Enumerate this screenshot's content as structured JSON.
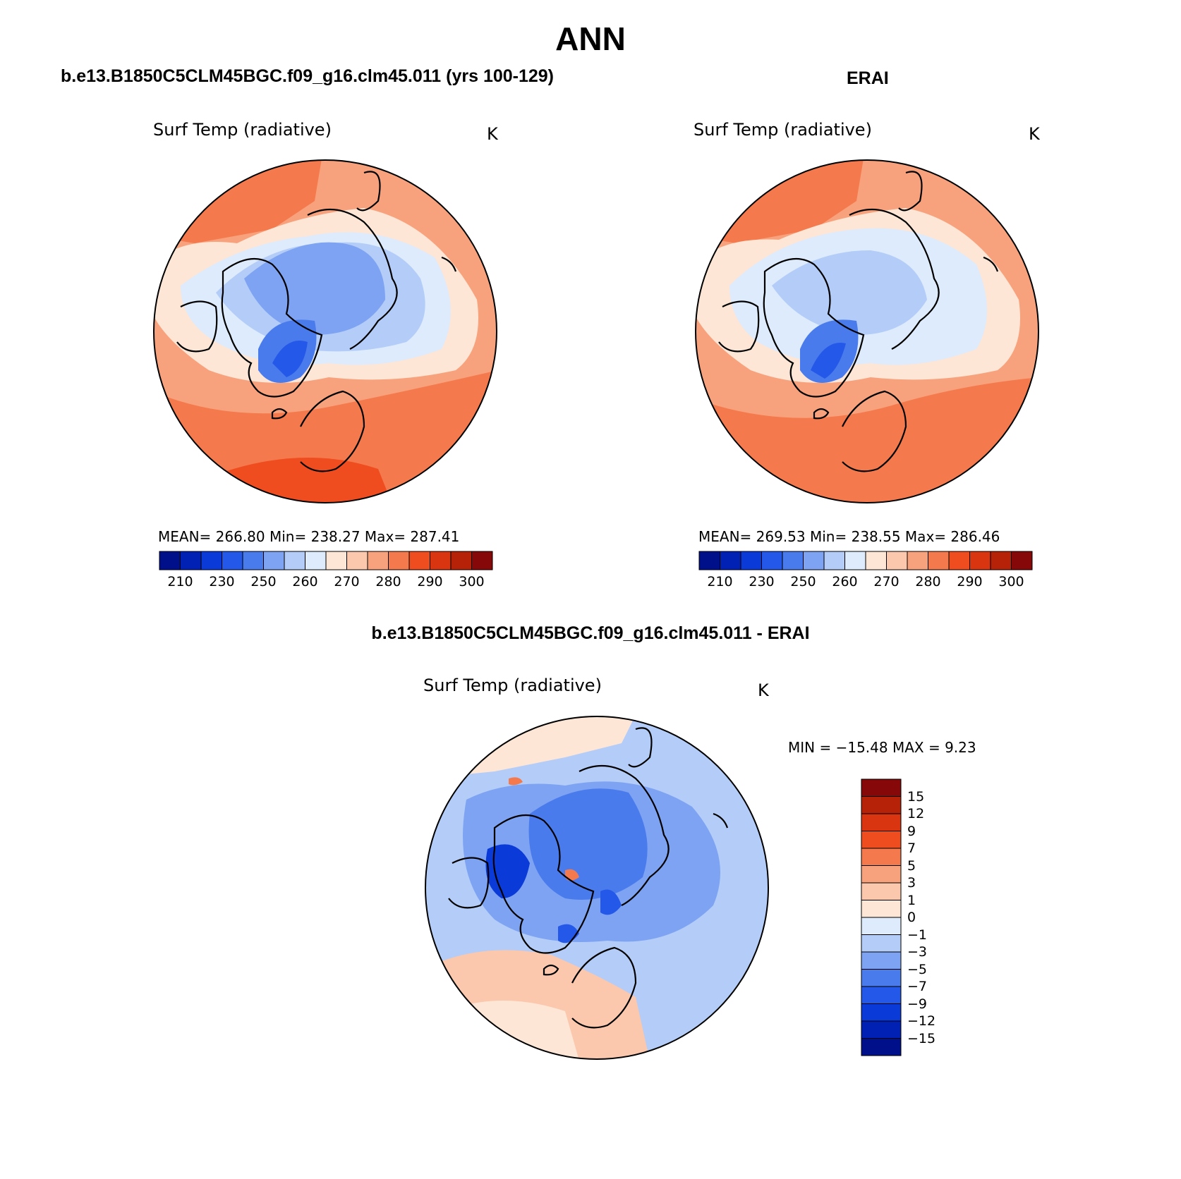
{
  "title": "ANN",
  "panels": [
    {
      "id": "model",
      "header": "b.e13.B1850C5CLM45BGC.f09_g16.clm45.011 (yrs 100-129)",
      "variable": "Surf Temp (radiative)",
      "units": "K",
      "stats": "MEAN=  266.80   Min=  238.27   Max=  287.41"
    },
    {
      "id": "obs",
      "header": "ERAI",
      "variable": "Surf Temp (radiative)",
      "units": "K",
      "stats": "MEAN=  269.53   Min=  238.55   Max=  286.46"
    },
    {
      "id": "diff",
      "header": "b.e13.B1850C5CLM45BGC.f09_g16.clm45.011 - ERAI",
      "variable": "Surf Temp (radiative)",
      "units": "K",
      "stats": "MIN = −15.48 MAX =     9.23"
    }
  ],
  "abs_colorbar": {
    "ticks": [
      "210",
      "230",
      "250",
      "260",
      "270",
      "280",
      "290",
      "300"
    ],
    "colors": [
      "#000f8a",
      "#0021b4",
      "#0a3ad8",
      "#2458e8",
      "#4a7bed",
      "#7ea3f2",
      "#b3cdf8",
      "#ddebfc",
      "#fde6d6",
      "#fbc7ad",
      "#f8a27d",
      "#f47a4d",
      "#ef4d1f",
      "#d93510",
      "#b62208",
      "#860808"
    ]
  },
  "diff_colorbar": {
    "labels": [
      "15",
      "12",
      "9",
      "7",
      "5",
      "3",
      "1",
      "0",
      "−1",
      "−3",
      "−5",
      "−7",
      "−9",
      "−12",
      "−15"
    ],
    "colors": [
      "#860808",
      "#b62208",
      "#d93510",
      "#ef4d1f",
      "#f47a4d",
      "#f8a27d",
      "#fbc7ad",
      "#fde6d6",
      "#ddebfc",
      "#b3cdf8",
      "#7ea3f2",
      "#4a7bed",
      "#2458e8",
      "#0a3ad8",
      "#0021b4",
      "#000f8a"
    ]
  }
}
